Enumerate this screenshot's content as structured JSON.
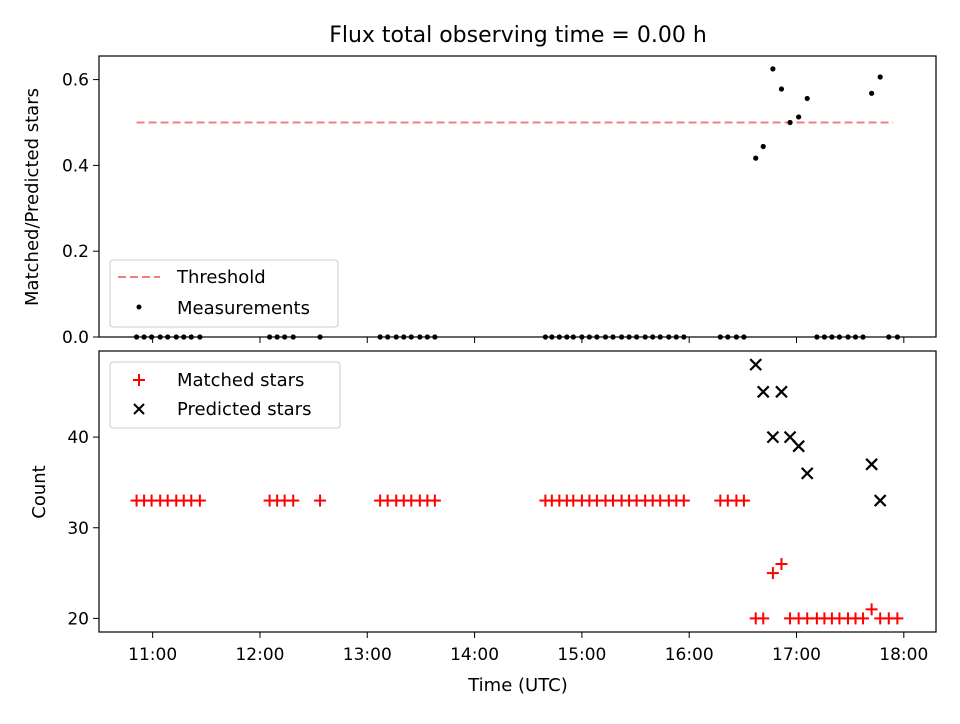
{
  "title": "Flux total observing time = 0.00 h",
  "colors": {
    "threshold": "#f08080",
    "measurement": "#000000",
    "matched": "#ff0000",
    "predicted": "#000000"
  },
  "chart_data": [
    {
      "type": "scatter",
      "ylabel": "Matched/Predicted stars",
      "ylim": [
        0,
        0.655
      ],
      "yticks": [
        0.0,
        0.2,
        0.4,
        0.6
      ],
      "ytick_labels": [
        "0.0",
        "0.2",
        "0.4",
        "0.6"
      ],
      "xlim": [
        10.5,
        18.3
      ],
      "threshold": {
        "name": "Threshold",
        "y": 0.5,
        "x": [
          10.85,
          17.9
        ]
      },
      "legend": {
        "position": "lower-left",
        "entries": [
          "Threshold",
          "Measurements"
        ]
      },
      "series": [
        {
          "name": "Measurements",
          "points": [
            [
              10.85,
              0
            ],
            [
              10.92,
              0
            ],
            [
              10.99,
              0
            ],
            [
              11.07,
              0
            ],
            [
              11.14,
              0
            ],
            [
              11.22,
              0
            ],
            [
              11.29,
              0
            ],
            [
              11.36,
              0
            ],
            [
              11.44,
              0
            ],
            [
              12.09,
              0
            ],
            [
              12.16,
              0
            ],
            [
              12.23,
              0
            ],
            [
              12.31,
              0
            ],
            [
              12.56,
              0
            ],
            [
              13.12,
              0
            ],
            [
              13.19,
              0
            ],
            [
              13.27,
              0
            ],
            [
              13.34,
              0
            ],
            [
              13.41,
              0
            ],
            [
              13.49,
              0
            ],
            [
              13.56,
              0
            ],
            [
              13.63,
              0
            ],
            [
              14.66,
              0
            ],
            [
              14.72,
              0
            ],
            [
              14.79,
              0
            ],
            [
              14.86,
              0
            ],
            [
              14.92,
              0
            ],
            [
              15.0,
              0
            ],
            [
              15.07,
              0
            ],
            [
              15.14,
              0
            ],
            [
              15.22,
              0
            ],
            [
              15.29,
              0
            ],
            [
              15.37,
              0
            ],
            [
              15.44,
              0
            ],
            [
              15.51,
              0
            ],
            [
              15.59,
              0
            ],
            [
              15.66,
              0
            ],
            [
              15.73,
              0
            ],
            [
              15.81,
              0
            ],
            [
              15.88,
              0
            ],
            [
              15.95,
              0
            ],
            [
              16.29,
              0
            ],
            [
              16.36,
              0
            ],
            [
              16.44,
              0
            ],
            [
              16.51,
              0
            ],
            [
              16.62,
              0.417
            ],
            [
              16.69,
              0.444
            ],
            [
              16.78,
              0.625
            ],
            [
              16.86,
              0.578
            ],
            [
              16.94,
              0.5
            ],
            [
              17.02,
              0.513
            ],
            [
              17.1,
              0.556
            ],
            [
              17.19,
              0
            ],
            [
              17.26,
              0
            ],
            [
              17.33,
              0
            ],
            [
              17.4,
              0
            ],
            [
              17.48,
              0
            ],
            [
              17.55,
              0
            ],
            [
              17.62,
              0
            ],
            [
              17.7,
              0.568
            ],
            [
              17.78,
              0.606
            ],
            [
              17.86,
              0
            ],
            [
              17.94,
              0
            ]
          ]
        }
      ]
    },
    {
      "type": "scatter",
      "xlabel": "Time (UTC)",
      "ylabel": "Count",
      "ylim": [
        18.5,
        49.5
      ],
      "yticks": [
        20,
        30,
        40
      ],
      "ytick_labels": [
        "20",
        "30",
        "40"
      ],
      "xlim": [
        10.5,
        18.3
      ],
      "xticks": [
        11,
        12,
        13,
        14,
        15,
        16,
        17,
        18
      ],
      "xtick_labels": [
        "11:00",
        "12:00",
        "13:00",
        "14:00",
        "15:00",
        "16:00",
        "17:00",
        "18:00"
      ],
      "legend": {
        "position": "top-left",
        "entries": [
          "Matched stars",
          "Predicted stars"
        ]
      },
      "series": [
        {
          "name": "Matched stars",
          "marker": "plus",
          "points": [
            [
              10.85,
              33
            ],
            [
              10.92,
              33
            ],
            [
              10.99,
              33
            ],
            [
              11.07,
              33
            ],
            [
              11.14,
              33
            ],
            [
              11.22,
              33
            ],
            [
              11.29,
              33
            ],
            [
              11.36,
              33
            ],
            [
              11.44,
              33
            ],
            [
              12.09,
              33
            ],
            [
              12.16,
              33
            ],
            [
              12.23,
              33
            ],
            [
              12.31,
              33
            ],
            [
              12.56,
              33
            ],
            [
              13.12,
              33
            ],
            [
              13.19,
              33
            ],
            [
              13.27,
              33
            ],
            [
              13.34,
              33
            ],
            [
              13.41,
              33
            ],
            [
              13.49,
              33
            ],
            [
              13.56,
              33
            ],
            [
              13.63,
              33
            ],
            [
              14.66,
              33
            ],
            [
              14.72,
              33
            ],
            [
              14.79,
              33
            ],
            [
              14.86,
              33
            ],
            [
              14.92,
              33
            ],
            [
              15.0,
              33
            ],
            [
              15.07,
              33
            ],
            [
              15.14,
              33
            ],
            [
              15.22,
              33
            ],
            [
              15.29,
              33
            ],
            [
              15.37,
              33
            ],
            [
              15.44,
              33
            ],
            [
              15.51,
              33
            ],
            [
              15.59,
              33
            ],
            [
              15.66,
              33
            ],
            [
              15.73,
              33
            ],
            [
              15.81,
              33
            ],
            [
              15.88,
              33
            ],
            [
              15.95,
              33
            ],
            [
              16.29,
              33
            ],
            [
              16.36,
              33
            ],
            [
              16.44,
              33
            ],
            [
              16.51,
              33
            ],
            [
              16.62,
              20
            ],
            [
              16.69,
              20
            ],
            [
              16.78,
              25
            ],
            [
              16.86,
              26
            ],
            [
              16.94,
              20
            ],
            [
              17.02,
              20
            ],
            [
              17.1,
              20
            ],
            [
              17.19,
              20
            ],
            [
              17.26,
              20
            ],
            [
              17.33,
              20
            ],
            [
              17.4,
              20
            ],
            [
              17.48,
              20
            ],
            [
              17.55,
              20
            ],
            [
              17.62,
              20
            ],
            [
              17.7,
              21
            ],
            [
              17.78,
              20
            ],
            [
              17.86,
              20
            ],
            [
              17.94,
              20
            ]
          ]
        },
        {
          "name": "Predicted stars",
          "marker": "x",
          "points": [
            [
              16.62,
              48
            ],
            [
              16.69,
              45
            ],
            [
              16.78,
              40
            ],
            [
              16.86,
              45
            ],
            [
              16.94,
              40
            ],
            [
              17.02,
              39
            ],
            [
              17.1,
              36
            ],
            [
              17.7,
              37
            ],
            [
              17.78,
              33
            ]
          ]
        }
      ]
    }
  ]
}
